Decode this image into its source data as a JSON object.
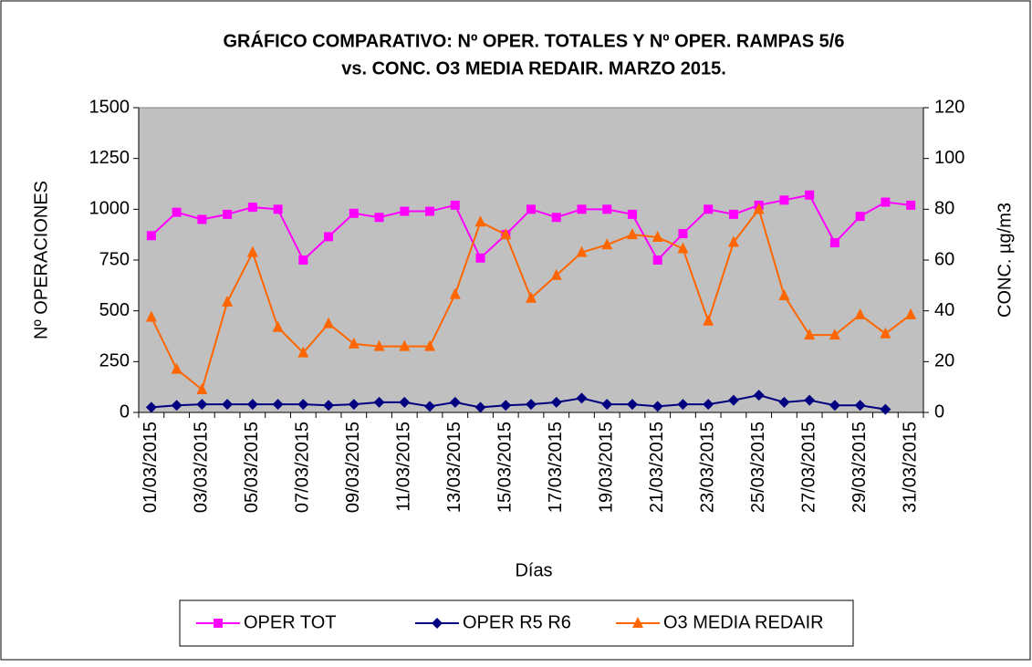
{
  "chart_data": {
    "type": "line",
    "title": [
      "GRÁFICO COMPARATIVO: Nº OPER. TOTALES Y Nº OPER. RAMPAS 5/6",
      "vs. CONC. O3 MEDIA REDAIR. MARZO 2015."
    ],
    "x_label": "Días",
    "y_label": "Nº OPERACIONES",
    "y2_label": "CONC. µg/m3",
    "categories": [
      "01/03/2015",
      null,
      "03/03/2015",
      null,
      "05/03/2015",
      null,
      "07/03/2015",
      null,
      "09/03/2015",
      null,
      "11/03/2015",
      null,
      "13/03/2015",
      null,
      "15/03/2015",
      null,
      "17/03/2015",
      null,
      "19/03/2015",
      null,
      "21/03/2015",
      null,
      "23/03/2015",
      null,
      "25/03/2015",
      null,
      "27/03/2015",
      null,
      "29/03/2015",
      null,
      "31/03/2015"
    ],
    "series": [
      {
        "name": "OPER TOT",
        "color": "#ff00ff",
        "marker": "square",
        "values": [
          870,
          985,
          950,
          975,
          1010,
          1000,
          750,
          865,
          980,
          960,
          990,
          990,
          1020,
          760,
          875,
          1000,
          960,
          1000,
          1000,
          975,
          750,
          880,
          1000,
          975,
          1020,
          1045,
          1070,
          835,
          965,
          1035,
          1020
        ]
      },
      {
        "name": "OPER R5 R6",
        "color": "#000080",
        "marker": "diamond",
        "values": [
          25,
          35,
          40,
          40,
          40,
          40,
          40,
          35,
          40,
          50,
          50,
          30,
          50,
          25,
          35,
          40,
          50,
          70,
          40,
          40,
          30,
          40,
          40,
          60,
          85,
          50,
          60,
          35,
          35,
          15,
          null
        ]
      },
      {
        "name": "O3 MEDIA REDAIR",
        "color": "#ff6600",
        "marker": "triangle",
        "axis": "y2",
        "values": [
          37.5,
          17,
          9,
          43.5,
          63,
          33.5,
          23.5,
          35,
          27,
          26,
          26,
          26,
          46.5,
          75,
          70,
          45,
          54,
          63,
          66,
          70,
          69,
          64.5,
          36,
          67,
          80,
          46,
          30.5,
          30.5,
          38.5,
          31,
          38.5
        ]
      }
    ],
    "ylim": [
      0,
      1500
    ],
    "yticks": [
      0,
      250,
      500,
      750,
      1000,
      1250,
      1500
    ],
    "y2lim": [
      0,
      120
    ],
    "y2ticks": [
      0,
      20,
      40,
      60,
      80,
      100,
      120
    ],
    "plot_background": "#c0c0c0",
    "legend": "bottom"
  }
}
